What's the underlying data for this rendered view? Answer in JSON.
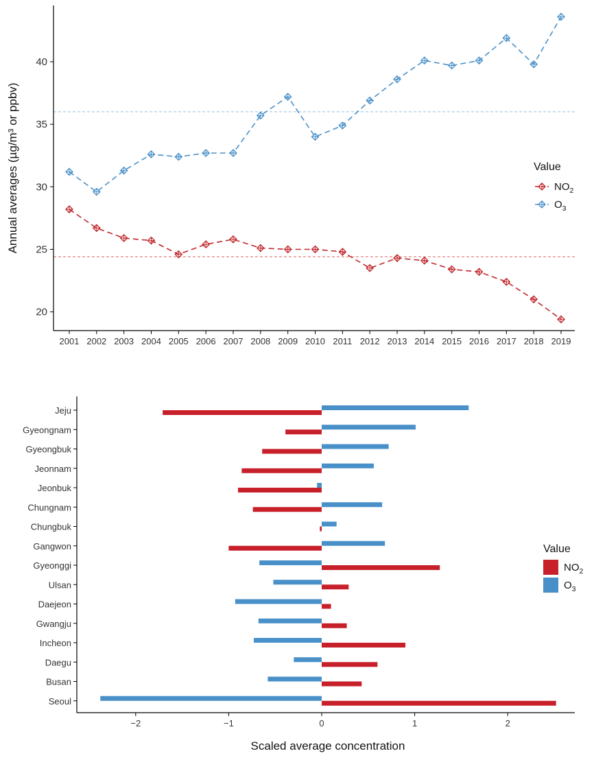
{
  "chart_data": [
    {
      "type": "line",
      "ylabel": "Annual averages (µg/m³ or ppbv)",
      "xlabel": "",
      "x": [
        2001,
        2002,
        2003,
        2004,
        2005,
        2006,
        2007,
        2008,
        2009,
        2010,
        2011,
        2012,
        2013,
        2014,
        2015,
        2016,
        2017,
        2018,
        2019
      ],
      "series": [
        {
          "name": "NO2",
          "label_main": "NO",
          "label_sub": "2",
          "color": "#c0282d",
          "values": [
            28.2,
            26.7,
            25.9,
            25.7,
            24.6,
            25.4,
            25.8,
            25.1,
            25.0,
            25.0,
            24.8,
            23.5,
            24.3,
            24.1,
            23.4,
            23.2,
            22.4,
            21.0,
            19.4
          ],
          "mean": 24.4
        },
        {
          "name": "O3",
          "label_main": "O",
          "label_sub": "3",
          "color": "#4a90c8",
          "values": [
            31.2,
            29.6,
            31.3,
            32.6,
            32.4,
            32.7,
            32.7,
            35.7,
            37.2,
            34.0,
            34.9,
            36.9,
            38.6,
            40.1,
            39.7,
            40.1,
            41.9,
            39.8,
            43.6
          ],
          "mean": 36.0
        }
      ],
      "ylim": [
        18.5,
        44.5
      ],
      "yticks": [
        20,
        25,
        30,
        35,
        40
      ],
      "xticks": [
        "2001",
        "2002",
        "2003",
        "2004",
        "2005",
        "2006",
        "2007",
        "2008",
        "2009",
        "2010",
        "2011",
        "2012",
        "2013",
        "2014",
        "2015",
        "2016",
        "2017",
        "2018",
        "2019"
      ],
      "legend": {
        "title": "Value",
        "position": "right"
      }
    },
    {
      "type": "bar",
      "orientation": "horizontal",
      "xlabel": "Scaled average concentration",
      "categories": [
        "Jeju",
        "Gyeongnam",
        "Gyeongbuk",
        "Jeonnam",
        "Jeonbuk",
        "Chungnam",
        "Chungbuk",
        "Gangwon",
        "Gyeonggi",
        "Ulsan",
        "Daejeon",
        "Gwangju",
        "Incheon",
        "Daegu",
        "Busan",
        "Seoul"
      ],
      "series": [
        {
          "name": "O3",
          "label_main": "O",
          "label_sub": "3",
          "color": "#4a90c8",
          "values": [
            1.58,
            1.01,
            0.72,
            0.56,
            -0.05,
            0.65,
            0.16,
            0.68,
            -0.67,
            -0.52,
            -0.93,
            -0.68,
            -0.73,
            -0.3,
            -0.58,
            -2.38
          ]
        },
        {
          "name": "NO2",
          "label_main": "NO",
          "label_sub": "2",
          "color": "#c8202a",
          "values": [
            -1.71,
            -0.39,
            -0.64,
            -0.86,
            -0.9,
            -0.74,
            -0.02,
            -1.0,
            1.27,
            0.29,
            0.1,
            0.27,
            0.9,
            0.6,
            0.43,
            2.52
          ]
        }
      ],
      "xlim": [
        -2.6,
        2.75
      ],
      "xticks": [
        -2,
        -1,
        0,
        1,
        2
      ],
      "xtick_labels": [
        "−2",
        "−1",
        "0",
        "1",
        "2"
      ],
      "legend": {
        "title": "Value",
        "position": "right"
      }
    }
  ]
}
